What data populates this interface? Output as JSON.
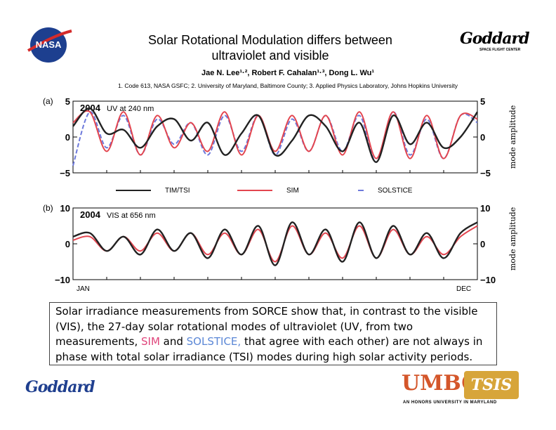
{
  "header": {
    "title_line1": "Solar Rotational Modulation differs between",
    "title_line2": "ultraviolet and visible",
    "authors": "Jae N. Lee¹·², Robert F. Cahalan¹·³, Dong L. Wu¹",
    "affiliations": "1. Code 613, NASA GSFC; 2. University of Maryland, Baltimore County; 3. Applied Physics Laboratory, Johns Hopkins University",
    "nasa_logo_text": "NASA",
    "goddard_logo_text": "Goddard",
    "goddard_sub": "SPACE FLIGHT CENTER"
  },
  "chart_data": [
    {
      "type": "line",
      "panel_label": "(a)",
      "year_label": "2004",
      "annotation": "UV at 240 nm",
      "ylabel_right": "mode amplitude",
      "ylim": [
        -5,
        5
      ],
      "yticks": [
        -5,
        0,
        5
      ],
      "grid": false,
      "x_months": [
        0,
        0.5,
        1,
        1.5,
        2,
        2.5,
        3,
        3.5,
        4,
        4.5,
        5,
        5.5,
        6,
        6.5,
        7,
        7.5,
        8,
        8.5,
        9,
        9.5,
        10,
        10.5,
        11,
        11.5,
        12
      ],
      "series": [
        {
          "name": "TIM/TSI",
          "color": "#222222",
          "values": [
            1.5,
            4.0,
            0.5,
            1.0,
            -1.5,
            1.5,
            2.5,
            -0.5,
            2.0,
            -2.5,
            0.5,
            3.0,
            -2.5,
            -0.5,
            3.0,
            1.5,
            -2.0,
            2.0,
            -3.5,
            3.0,
            -1.0,
            2.0,
            -1.5,
            0.0,
            3.5
          ]
        },
        {
          "name": "SIM",
          "color": "#e3454f",
          "values": [
            2.0,
            3.5,
            -2.0,
            3.5,
            -2.5,
            3.0,
            -1.5,
            2.0,
            -2.0,
            3.5,
            -2.5,
            3.0,
            -2.0,
            3.0,
            -2.0,
            3.0,
            -2.5,
            3.5,
            -3.0,
            3.5,
            -3.0,
            3.0,
            -3.0,
            3.0,
            2.5
          ]
        },
        {
          "name": "SOLSTICE",
          "color": "#6d79db",
          "values": [
            -4.0,
            3.5,
            -1.5,
            3.0,
            -2.5,
            2.5,
            -1.0,
            2.0,
            -2.5,
            3.0,
            -2.0,
            3.0,
            -2.5,
            2.5,
            -2.0,
            3.0,
            -2.0,
            3.0,
            -3.5,
            3.5,
            -2.5,
            2.5,
            -3.0,
            3.0,
            2.0
          ]
        }
      ]
    },
    {
      "type": "line",
      "panel_label": "(b)",
      "year_label": "2004",
      "annotation": "VIS at 656 nm",
      "ylabel_right": "mode amplitude",
      "ylim": [
        -10,
        10
      ],
      "yticks": [
        -10,
        0,
        10
      ],
      "xtick_start": "JAN",
      "xtick_end": "DEC",
      "grid": false,
      "x_months": [
        0,
        0.5,
        1,
        1.5,
        2,
        2.5,
        3,
        3.5,
        4,
        4.5,
        5,
        5.5,
        6,
        6.5,
        7,
        7.5,
        8,
        8.5,
        9,
        9.5,
        10,
        10.5,
        11,
        11.5,
        12
      ],
      "series": [
        {
          "name": "TIM/TSI",
          "color": "#222222",
          "values": [
            2,
            3,
            -2,
            2,
            -3,
            4,
            -2,
            3,
            -4,
            4,
            -3,
            5,
            -6,
            6,
            -3,
            4,
            -5,
            6,
            -4,
            5,
            -3,
            3,
            -4,
            3,
            6
          ]
        },
        {
          "name": "SIM",
          "color": "#e3454f",
          "values": [
            1,
            2,
            -2,
            2,
            -2,
            3,
            -2,
            3,
            -3,
            3,
            -3,
            4,
            -5,
            5,
            -3,
            3,
            -4,
            5,
            -4,
            4,
            -3,
            2,
            -3,
            2,
            5
          ]
        }
      ]
    }
  ],
  "legend": [
    {
      "name": "TIM/TSI",
      "color": "#222222",
      "dashed": false
    },
    {
      "name": "SIM",
      "color": "#e3454f",
      "dashed": false
    },
    {
      "name": "SOLSTICE",
      "color": "#6d79db",
      "dashed": true
    }
  ],
  "summary": {
    "part1": "Solar irradiance measurements from SORCE show that, in contrast to the visible (VIS), the 27-day solar rotational modes of ultraviolet (UV, from two measurements, ",
    "sim": "SIM",
    "and": " and ",
    "solstice": "SOLSTICE,",
    "part2": " that agree with each other) are not always in phase with total solar irradiance (TSI) modes during high solar activity periods."
  },
  "footer": {
    "goddard_text": "Goddard",
    "umbc_text": "UMBC",
    "umbc_sub": "AN HONORS UNIVERSITY IN MARYLAND",
    "tsis_text": "TSIS",
    "colors": {
      "umbc": "#d4562a",
      "tsis_gold": "#d7a53a"
    }
  }
}
